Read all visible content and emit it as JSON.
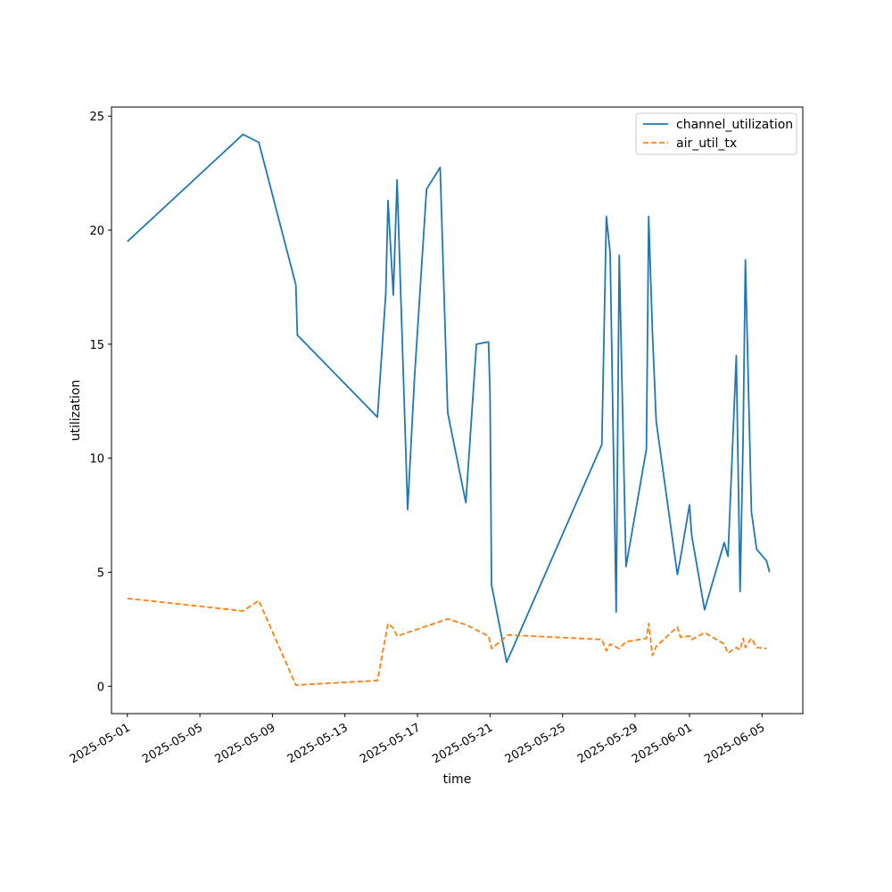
{
  "chart_data": {
    "type": "line",
    "xlabel": "time",
    "ylabel": "utilization",
    "x_type": "datetime",
    "xlim": [
      "2025-04-30T03:00",
      "2025-06-07T06:00"
    ],
    "ylim": [
      -1.2,
      25.4
    ],
    "y_ticks": [
      0,
      5,
      10,
      15,
      20,
      25
    ],
    "x_ticks": [
      "2025-05-01",
      "2025-05-05",
      "2025-05-09",
      "2025-05-13",
      "2025-05-17",
      "2025-05-21",
      "2025-05-25",
      "2025-05-29",
      "2025-06-01",
      "2025-06-05"
    ],
    "grid": false,
    "legend": "top-right",
    "series": [
      {
        "name": "channel_utilization",
        "color": "#1f77b4",
        "style": "solid",
        "x": [
          "2025-05-01T00:00",
          "2025-05-07T09:00",
          "2025-05-08T06:00",
          "2025-05-10T07:00",
          "2025-05-10T09:00",
          "2025-05-14T19:00",
          "2025-05-15T06:00",
          "2025-05-15T09:00",
          "2025-05-15T16:00",
          "2025-05-15T21:00",
          "2025-05-16T11:00",
          "2025-05-16T20:00",
          "2025-05-17T12:00",
          "2025-05-18T06:00",
          "2025-05-18T16:00",
          "2025-05-19T16:00",
          "2025-05-20T06:00",
          "2025-05-20T22:00",
          "2025-05-21T00:00",
          "2025-05-21T02:00",
          "2025-05-21T22:00",
          "2025-05-27T04:00",
          "2025-05-27T10:00",
          "2025-05-27T15:00",
          "2025-05-27T23:00",
          "2025-05-28T03:00",
          "2025-05-28T12:00",
          "2025-05-29T15:00",
          "2025-05-29T18:00",
          "2025-05-29T23:00",
          "2025-05-30T04:00",
          "2025-05-31T08:00",
          "2025-05-31T12:00",
          "2025-06-01T00:00",
          "2025-06-01T03:00",
          "2025-06-01T20:00",
          "2025-06-02T22:00",
          "2025-06-03T03:00",
          "2025-06-03T14:00",
          "2025-06-03T19:00",
          "2025-06-03T23:00",
          "2025-06-04T02:00",
          "2025-06-04T10:00",
          "2025-06-04T17:00",
          "2025-06-05T06:00",
          "2025-06-05T10:00"
        ],
        "values": [
          19.5,
          24.2,
          23.85,
          17.6,
          15.4,
          11.8,
          17.2,
          21.3,
          17.15,
          22.2,
          7.75,
          13.5,
          21.8,
          22.75,
          12.0,
          8.05,
          15.0,
          15.1,
          12.9,
          4.45,
          1.05,
          10.6,
          20.6,
          19.0,
          3.25,
          18.9,
          5.25,
          10.4,
          20.6,
          15.5,
          11.6,
          4.9,
          5.6,
          7.95,
          6.6,
          3.35,
          6.3,
          5.7,
          14.5,
          4.15,
          10.9,
          18.7,
          7.65,
          6.0,
          5.5,
          5.0
        ]
      },
      {
        "name": "air_util_tx",
        "color": "#ff7f0e",
        "style": "dashed",
        "x": [
          "2025-05-01T00:00",
          "2025-05-07T09:00",
          "2025-05-08T06:00",
          "2025-05-10T07:00",
          "2025-05-14T19:00",
          "2025-05-15T09:00",
          "2025-05-15T16:00",
          "2025-05-15T21:00",
          "2025-05-18T16:00",
          "2025-05-19T16:00",
          "2025-05-20T22:00",
          "2025-05-21T02:00",
          "2025-05-22T00:00",
          "2025-05-27T04:00",
          "2025-05-27T10:00",
          "2025-05-27T15:00",
          "2025-05-28T03:00",
          "2025-05-28T12:00",
          "2025-05-29T15:00",
          "2025-05-29T18:00",
          "2025-05-29T23:00",
          "2025-05-30T04:00",
          "2025-05-31T08:00",
          "2025-05-31T12:00",
          "2025-06-01T00:00",
          "2025-06-01T03:00",
          "2025-06-01T20:00",
          "2025-06-02T22:00",
          "2025-06-03T03:00",
          "2025-06-03T14:00",
          "2025-06-03T19:00",
          "2025-06-03T23:00",
          "2025-06-04T02:00",
          "2025-06-04T10:00",
          "2025-06-04T17:00",
          "2025-06-05T06:00"
        ],
        "values": [
          3.85,
          3.3,
          3.75,
          0.05,
          0.25,
          2.75,
          2.55,
          2.2,
          2.95,
          2.7,
          2.2,
          1.65,
          2.25,
          2.05,
          1.55,
          1.85,
          1.65,
          1.95,
          2.1,
          2.75,
          1.35,
          1.75,
          2.6,
          2.15,
          2.2,
          2.05,
          2.35,
          1.85,
          1.45,
          1.7,
          1.6,
          2.1,
          1.7,
          2.1,
          1.7,
          1.65
        ]
      }
    ]
  }
}
